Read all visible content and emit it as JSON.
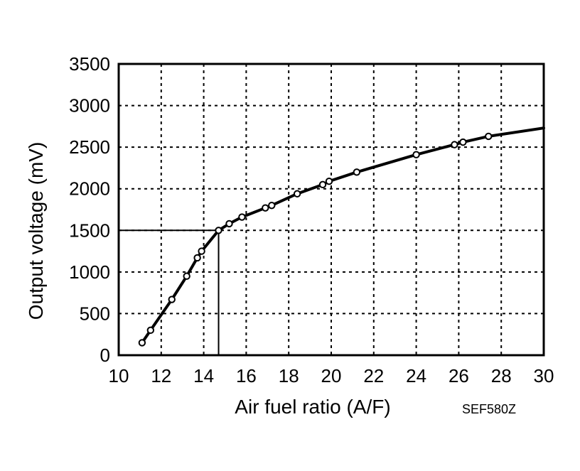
{
  "chart_data": {
    "type": "line",
    "title": "",
    "xlabel": "Air fuel ratio (A/F)",
    "ylabel": "Output voltage (mV)",
    "figure_code": "SEF580Z",
    "xlim": [
      10,
      30
    ],
    "ylim": [
      0,
      3500
    ],
    "x_ticks": [
      10,
      12,
      14,
      16,
      18,
      20,
      22,
      24,
      26,
      28,
      30
    ],
    "y_ticks": [
      0,
      500,
      1000,
      1500,
      2000,
      2500,
      3000,
      3500
    ],
    "grid": true,
    "series": [
      {
        "line": [
          [
            11.1,
            150
          ],
          [
            11.5,
            300
          ],
          [
            12.5,
            670
          ],
          [
            13.2,
            950
          ],
          [
            13.7,
            1170
          ],
          [
            13.9,
            1250
          ],
          [
            14.7,
            1500
          ],
          [
            15.2,
            1580
          ],
          [
            15.8,
            1660
          ],
          [
            16.2,
            1700
          ],
          [
            16.9,
            1770
          ],
          [
            17.2,
            1800
          ],
          [
            18.4,
            1940
          ],
          [
            19.6,
            2050
          ],
          [
            19.9,
            2090
          ],
          [
            21.2,
            2200
          ],
          [
            24.0,
            2410
          ],
          [
            25.8,
            2530
          ],
          [
            26.2,
            2560
          ],
          [
            27.4,
            2630
          ],
          [
            30.0,
            2730
          ]
        ],
        "markers": [
          [
            11.1,
            150
          ],
          [
            11.5,
            300
          ],
          [
            12.5,
            670
          ],
          [
            13.2,
            950
          ],
          [
            13.7,
            1170
          ],
          [
            13.9,
            1250
          ],
          [
            14.7,
            1500
          ],
          [
            15.2,
            1580
          ],
          [
            15.8,
            1660
          ],
          [
            16.9,
            1770
          ],
          [
            17.2,
            1800
          ],
          [
            18.4,
            1940
          ],
          [
            19.6,
            2050
          ],
          [
            19.9,
            2090
          ],
          [
            21.2,
            2200
          ],
          [
            24.0,
            2410
          ],
          [
            25.8,
            2530
          ],
          [
            26.2,
            2560
          ],
          [
            27.4,
            2630
          ]
        ]
      }
    ],
    "reference": {
      "x": 14.7,
      "y": 1500
    }
  }
}
